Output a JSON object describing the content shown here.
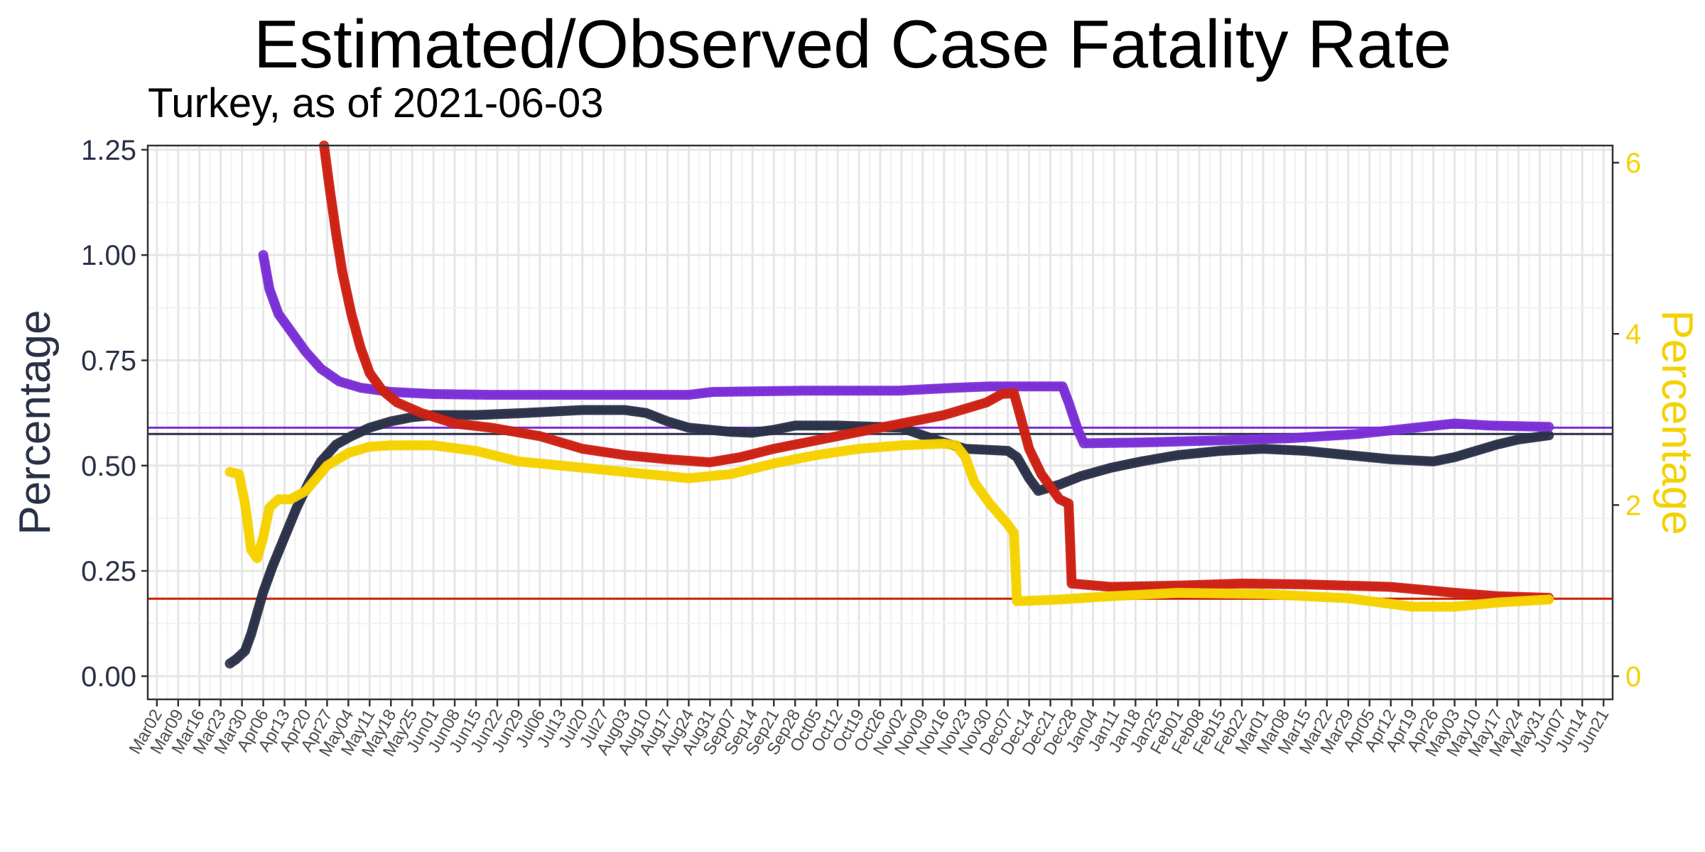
{
  "chart_data": {
    "type": "line",
    "title": "Estimated/Observed Case Fatality Rate",
    "subtitle": "Turkey, as of 2021-06-03",
    "ylabel": "Percentage",
    "ylabel_right": "Percentage",
    "ylim": [
      -0.055,
      1.26
    ],
    "ylim_right": [
      -0.27,
      6.2
    ],
    "y_ticks": [
      "0.00",
      "0.25",
      "0.50",
      "0.75",
      "1.00",
      "1.25"
    ],
    "y_ticks_right": [
      "0",
      "2",
      "4",
      "6"
    ],
    "x_start": "2020-02-28",
    "x_end": "2021-06-24",
    "x_ticks": [
      "Mar02",
      "Mar09",
      "Mar16",
      "Mar23",
      "Mar30",
      "Apr06",
      "Apr13",
      "Apr20",
      "Apr27",
      "May04",
      "May11",
      "May18",
      "May25",
      "Jun01",
      "Jun08",
      "Jun15",
      "Jun22",
      "Jun29",
      "Jul06",
      "Jul13",
      "Jul20",
      "Jul27",
      "Aug03",
      "Aug10",
      "Aug17",
      "Aug24",
      "Aug31",
      "Sep07",
      "Sep14",
      "Sep21",
      "Sep28",
      "Oct05",
      "Oct12",
      "Oct19",
      "Oct26",
      "Nov02",
      "Nov09",
      "Nov16",
      "Nov23",
      "Nov30",
      "Dec07",
      "Dec14",
      "Dec21",
      "Dec28",
      "Jan04",
      "Jan11",
      "Jan18",
      "Jan25",
      "Feb01",
      "Feb08",
      "Feb15",
      "Feb22",
      "Mar01",
      "Mar08",
      "Mar15",
      "Mar22",
      "Mar29",
      "Apr05",
      "Apr12",
      "Apr19",
      "Apr26",
      "May03",
      "May10",
      "May17",
      "May24",
      "May31",
      "Jun07",
      "Jun14",
      "Jun21"
    ],
    "grid": true,
    "colors": {
      "navy": "#2b3148",
      "purple": "#7b2fd6",
      "red": "#cc2214",
      "yellow": "#f5d100"
    },
    "hlines": [
      {
        "axis": "left",
        "y": 0.59,
        "color": "#7b2fd6"
      },
      {
        "axis": "left",
        "y": 0.575,
        "color": "#2b3148"
      },
      {
        "axis": "left",
        "y": 0.184,
        "color": "#f5d100"
      },
      {
        "axis": "left",
        "y": 0.184,
        "color": "#cc2214"
      }
    ],
    "series": [
      {
        "color": "#2b3148",
        "axis": "left",
        "points": [
          [
            "2020-03-26",
            0.03
          ],
          [
            "2020-03-28",
            0.04
          ],
          [
            "2020-03-31",
            0.06
          ],
          [
            "2020-04-02",
            0.1
          ],
          [
            "2020-04-04",
            0.15
          ],
          [
            "2020-04-06",
            0.2
          ],
          [
            "2020-04-09",
            0.26
          ],
          [
            "2020-04-13",
            0.33
          ],
          [
            "2020-04-17",
            0.4
          ],
          [
            "2020-04-21",
            0.46
          ],
          [
            "2020-04-25",
            0.51
          ],
          [
            "2020-04-30",
            0.55
          ],
          [
            "2020-05-05",
            0.57
          ],
          [
            "2020-05-11",
            0.59
          ],
          [
            "2020-05-18",
            0.605
          ],
          [
            "2020-05-25",
            0.615
          ],
          [
            "2020-06-01",
            0.62
          ],
          [
            "2020-06-15",
            0.62
          ],
          [
            "2020-07-01",
            0.625
          ],
          [
            "2020-07-20",
            0.632
          ],
          [
            "2020-08-03",
            0.632
          ],
          [
            "2020-08-10",
            0.625
          ],
          [
            "2020-08-17",
            0.605
          ],
          [
            "2020-08-24",
            0.59
          ],
          [
            "2020-09-07",
            0.58
          ],
          [
            "2020-09-14",
            0.578
          ],
          [
            "2020-09-21",
            0.585
          ],
          [
            "2020-09-28",
            0.595
          ],
          [
            "2020-10-12",
            0.595
          ],
          [
            "2020-11-02",
            0.59
          ],
          [
            "2020-11-09",
            0.572
          ],
          [
            "2020-11-16",
            0.555
          ],
          [
            "2020-11-23",
            0.54
          ],
          [
            "2020-12-07",
            0.535
          ],
          [
            "2020-12-10",
            0.52
          ],
          [
            "2020-12-14",
            0.47
          ],
          [
            "2020-12-17",
            0.44
          ],
          [
            "2020-12-24",
            0.455
          ],
          [
            "2020-12-31",
            0.475
          ],
          [
            "2021-01-10",
            0.495
          ],
          [
            "2021-01-20",
            0.51
          ],
          [
            "2021-02-01",
            0.525
          ],
          [
            "2021-02-15",
            0.535
          ],
          [
            "2021-03-01",
            0.54
          ],
          [
            "2021-03-15",
            0.535
          ],
          [
            "2021-03-29",
            0.525
          ],
          [
            "2021-04-12",
            0.515
          ],
          [
            "2021-04-26",
            0.51
          ],
          [
            "2021-05-03",
            0.52
          ],
          [
            "2021-05-10",
            0.535
          ],
          [
            "2021-05-17",
            0.55
          ],
          [
            "2021-05-24",
            0.562
          ],
          [
            "2021-06-03",
            0.572
          ]
        ]
      },
      {
        "color": "#7b2fd6",
        "axis": "left",
        "points": [
          [
            "2020-04-06",
            1.0
          ],
          [
            "2020-04-08",
            0.92
          ],
          [
            "2020-04-11",
            0.86
          ],
          [
            "2020-04-15",
            0.82
          ],
          [
            "2020-04-20",
            0.77
          ],
          [
            "2020-04-25",
            0.73
          ],
          [
            "2020-05-01",
            0.7
          ],
          [
            "2020-05-08",
            0.685
          ],
          [
            "2020-05-18",
            0.675
          ],
          [
            "2020-06-01",
            0.67
          ],
          [
            "2020-06-20",
            0.668
          ],
          [
            "2020-07-15",
            0.668
          ],
          [
            "2020-08-10",
            0.668
          ],
          [
            "2020-08-24",
            0.668
          ],
          [
            "2020-09-01",
            0.675
          ],
          [
            "2020-10-01",
            0.678
          ],
          [
            "2020-11-01",
            0.678
          ],
          [
            "2020-11-20",
            0.685
          ],
          [
            "2020-12-01",
            0.688
          ],
          [
            "2020-12-25",
            0.688
          ],
          [
            "2020-12-27",
            0.65
          ],
          [
            "2020-12-30",
            0.585
          ],
          [
            "2021-01-01",
            0.553
          ],
          [
            "2021-01-20",
            0.555
          ],
          [
            "2021-02-15",
            0.56
          ],
          [
            "2021-03-10",
            0.565
          ],
          [
            "2021-04-01",
            0.575
          ],
          [
            "2021-04-20",
            0.59
          ],
          [
            "2021-05-03",
            0.6
          ],
          [
            "2021-05-15",
            0.595
          ],
          [
            "2021-06-03",
            0.592
          ]
        ]
      },
      {
        "color": "#cc2214",
        "axis": "left",
        "points": [
          [
            "2020-04-26",
            1.26
          ],
          [
            "2020-04-28",
            1.15
          ],
          [
            "2020-04-30",
            1.05
          ],
          [
            "2020-05-02",
            0.96
          ],
          [
            "2020-05-05",
            0.86
          ],
          [
            "2020-05-08",
            0.78
          ],
          [
            "2020-05-11",
            0.72
          ],
          [
            "2020-05-15",
            0.68
          ],
          [
            "2020-05-20",
            0.65
          ],
          [
            "2020-05-28",
            0.625
          ],
          [
            "2020-06-08",
            0.6
          ],
          [
            "2020-06-20",
            0.59
          ],
          [
            "2020-07-06",
            0.57
          ],
          [
            "2020-07-20",
            0.54
          ],
          [
            "2020-08-03",
            0.525
          ],
          [
            "2020-08-17",
            0.515
          ],
          [
            "2020-08-31",
            0.508
          ],
          [
            "2020-09-10",
            0.52
          ],
          [
            "2020-09-21",
            0.54
          ],
          [
            "2020-10-05",
            0.56
          ],
          [
            "2020-10-19",
            0.58
          ],
          [
            "2020-11-02",
            0.6
          ],
          [
            "2020-11-16",
            0.62
          ],
          [
            "2020-11-30",
            0.65
          ],
          [
            "2020-12-05",
            0.67
          ],
          [
            "2020-12-09",
            0.672
          ],
          [
            "2020-12-11",
            0.62
          ],
          [
            "2020-12-14",
            0.54
          ],
          [
            "2020-12-18",
            0.48
          ],
          [
            "2020-12-24",
            0.42
          ],
          [
            "2020-12-27",
            0.41
          ],
          [
            "2020-12-28",
            0.22
          ],
          [
            "2021-01-10",
            0.212
          ],
          [
            "2021-02-01",
            0.215
          ],
          [
            "2021-02-22",
            0.22
          ],
          [
            "2021-03-15",
            0.218
          ],
          [
            "2021-04-12",
            0.212
          ],
          [
            "2021-05-03",
            0.198
          ],
          [
            "2021-05-17",
            0.19
          ],
          [
            "2021-06-03",
            0.186
          ]
        ]
      },
      {
        "color": "#f5d100",
        "axis": "left",
        "points": [
          [
            "2020-03-26",
            0.485
          ],
          [
            "2020-03-29",
            0.48
          ],
          [
            "2020-03-31",
            0.41
          ],
          [
            "2020-04-02",
            0.3
          ],
          [
            "2020-04-04",
            0.28
          ],
          [
            "2020-04-06",
            0.33
          ],
          [
            "2020-04-08",
            0.4
          ],
          [
            "2020-04-11",
            0.42
          ],
          [
            "2020-04-15",
            0.42
          ],
          [
            "2020-04-20",
            0.44
          ],
          [
            "2020-04-27",
            0.5
          ],
          [
            "2020-05-04",
            0.53
          ],
          [
            "2020-05-11",
            0.545
          ],
          [
            "2020-05-18",
            0.548
          ],
          [
            "2020-06-01",
            0.548
          ],
          [
            "2020-06-15",
            0.535
          ],
          [
            "2020-06-29",
            0.51
          ],
          [
            "2020-07-13",
            0.5
          ],
          [
            "2020-07-27",
            0.49
          ],
          [
            "2020-08-10",
            0.48
          ],
          [
            "2020-08-24",
            0.47
          ],
          [
            "2020-09-07",
            0.48
          ],
          [
            "2020-09-21",
            0.505
          ],
          [
            "2020-10-05",
            0.525
          ],
          [
            "2020-10-19",
            0.54
          ],
          [
            "2020-11-02",
            0.548
          ],
          [
            "2020-11-16",
            0.552
          ],
          [
            "2020-11-20",
            0.548
          ],
          [
            "2020-11-23",
            0.52
          ],
          [
            "2020-11-26",
            0.46
          ],
          [
            "2020-12-01",
            0.41
          ],
          [
            "2020-12-07",
            0.36
          ],
          [
            "2020-12-09",
            0.34
          ],
          [
            "2020-12-10",
            0.178
          ],
          [
            "2020-12-24",
            0.182
          ],
          [
            "2021-01-10",
            0.19
          ],
          [
            "2021-02-01",
            0.198
          ],
          [
            "2021-03-01",
            0.195
          ],
          [
            "2021-03-29",
            0.185
          ],
          [
            "2021-04-19",
            0.165
          ],
          [
            "2021-05-03",
            0.165
          ],
          [
            "2021-05-17",
            0.175
          ],
          [
            "2021-06-03",
            0.182
          ]
        ]
      }
    ]
  }
}
